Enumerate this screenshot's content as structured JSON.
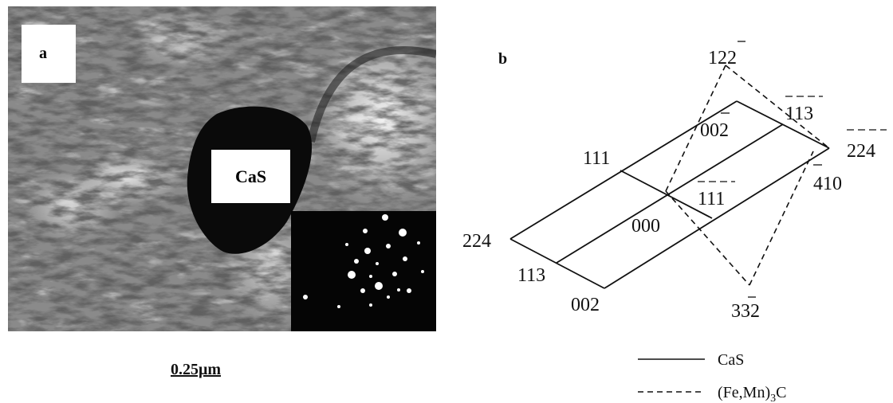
{
  "panel_a": {
    "label": "a",
    "particle_label": "CaS",
    "scale_bar": "0.25μm"
  },
  "panel_b": {
    "label": "b",
    "indices": {
      "i122": "122",
      "i113top": "113",
      "i002bar": "002",
      "i224right": "224",
      "i111": "111",
      "i111bar": "111",
      "i410": "410",
      "i000": "000",
      "i224left": "224",
      "i113left": "113",
      "i002": "002",
      "i332": "332"
    },
    "legend": [
      {
        "label": "CaS",
        "line": "solid"
      },
      {
        "label": "(Fe,Mn)",
        "sub": "3",
        "suffix": "C",
        "line": "dashed"
      }
    ]
  }
}
